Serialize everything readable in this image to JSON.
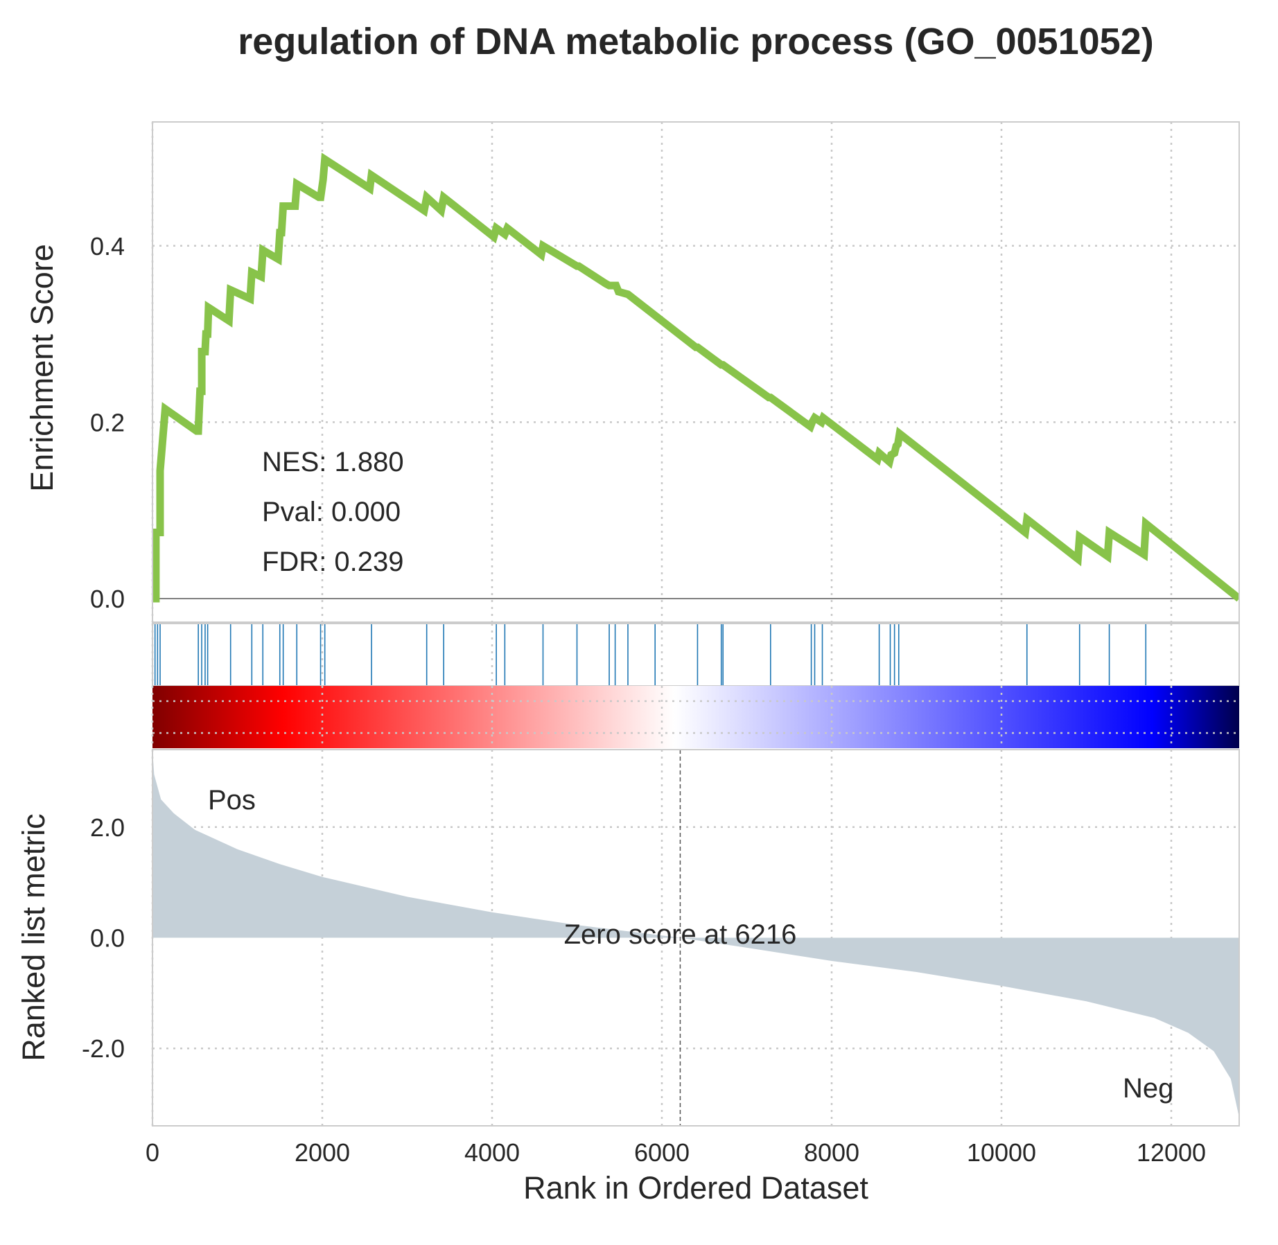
{
  "chart_data": {
    "type": "line",
    "title": "regulation of DNA metabolic process (GO_0051052)",
    "xlabel": "Rank in Ordered Dataset",
    "xlim": [
      0,
      12800
    ],
    "x_ticks": [
      "0",
      "2000",
      "4000",
      "6000",
      "8000",
      "10000",
      "12000"
    ],
    "x_tick_values": [
      0,
      2000,
      4000,
      6000,
      8000,
      10000,
      12000
    ],
    "grid": true,
    "enrichment": {
      "ylabel": "Enrichment Score",
      "ylim": [
        0,
        0.52
      ],
      "y_ticks": [
        "0.0",
        "0.2",
        "0.4"
      ],
      "y_tick_values": [
        0,
        0.2,
        0.4
      ],
      "line_color": "#88c34a",
      "series": {
        "name": "",
        "x": [
          0,
          40,
          40,
          90,
          90,
          150,
          520,
          540,
          560,
          580,
          580,
          620,
          630,
          650,
          660,
          900,
          920,
          1150,
          1170,
          1280,
          1300,
          1480,
          1500,
          1520,
          1540,
          1560,
          1680,
          1700,
          1960,
          1980,
          2010,
          2030,
          2560,
          2580,
          3200,
          3230,
          3400,
          3430,
          4020,
          4050,
          4150,
          4180,
          4580,
          4600,
          5000,
          5020,
          5340,
          5380,
          5460,
          5490,
          5600,
          6400,
          6420,
          6700,
          6720,
          7260,
          7280,
          7750,
          7770,
          7800,
          7880,
          7900,
          8540,
          8560,
          8680,
          8700,
          8740,
          8760,
          8780,
          8800,
          10280,
          10300,
          10900,
          10920,
          11250,
          11270,
          11680,
          11700,
          12800
        ],
        "y": [
          0,
          0,
          0.075,
          0.075,
          0.145,
          0.215,
          0.19,
          0.19,
          0.235,
          0.235,
          0.28,
          0.28,
          0.3,
          0.3,
          0.33,
          0.315,
          0.35,
          0.34,
          0.37,
          0.365,
          0.395,
          0.385,
          0.415,
          0.415,
          0.445,
          0.445,
          0.445,
          0.47,
          0.455,
          0.455,
          0.475,
          0.498,
          0.465,
          0.48,
          0.44,
          0.455,
          0.44,
          0.455,
          0.41,
          0.42,
          0.413,
          0.42,
          0.39,
          0.4,
          0.377,
          0.377,
          0.357,
          0.355,
          0.355,
          0.348,
          0.345,
          0.285,
          0.285,
          0.265,
          0.265,
          0.228,
          0.228,
          0.195,
          0.2,
          0.205,
          0.2,
          0.205,
          0.158,
          0.165,
          0.155,
          0.163,
          0.165,
          0.173,
          0.175,
          0.187,
          0.075,
          0.09,
          0.045,
          0.07,
          0.048,
          0.075,
          0.05,
          0.085,
          0
        ]
      },
      "annotations": [
        "NES: 1.880",
        "Pval: 0.000",
        "FDR: 0.239"
      ]
    },
    "hits": {
      "color": "#1f77b4",
      "positions": [
        30,
        60,
        90,
        540,
        580,
        620,
        650,
        920,
        1170,
        1300,
        1500,
        1540,
        1700,
        1980,
        2030,
        2580,
        3230,
        3430,
        4050,
        4150,
        4600,
        5000,
        5380,
        5450,
        5600,
        5920,
        6420,
        6700,
        6720,
        7280,
        7760,
        7800,
        7890,
        8560,
        8690,
        8740,
        8790,
        10300,
        10920,
        11270,
        11700
      ]
    },
    "heatmap": {
      "type": "heatmap",
      "colormap": "seismic",
      "colors": [
        "#00004c",
        "#0000ff",
        "#ffffff",
        "#ff0000",
        "#800000"
      ]
    },
    "ranked_metric": {
      "ylabel": "Ranked list metric",
      "ylim": [
        -3.4,
        3.4
      ],
      "y_ticks": [
        "2.0",
        "0.0",
        "-2.0"
      ],
      "y_tick_values": [
        2,
        0,
        -2
      ],
      "fill_color": "#c5d0d8",
      "x": [
        0,
        20,
        100,
        250,
        500,
        1000,
        1500,
        2000,
        3000,
        4000,
        5000,
        6216,
        7000,
        8000,
        9000,
        10000,
        11000,
        11800,
        12200,
        12500,
        12700,
        12800
      ],
      "y": [
        3.4,
        2.95,
        2.5,
        2.25,
        1.95,
        1.6,
        1.33,
        1.1,
        0.74,
        0.46,
        0.23,
        0.0,
        -0.18,
        -0.42,
        -0.62,
        -0.87,
        -1.15,
        -1.45,
        -1.72,
        -2.05,
        -2.55,
        -3.25
      ],
      "zero_crossing": 6216,
      "zero_label": "Zero score at 6216",
      "pos_label": "Pos",
      "neg_label": "Neg",
      "pos_color": "#ff0000",
      "neg_color": "#0000ff"
    }
  }
}
